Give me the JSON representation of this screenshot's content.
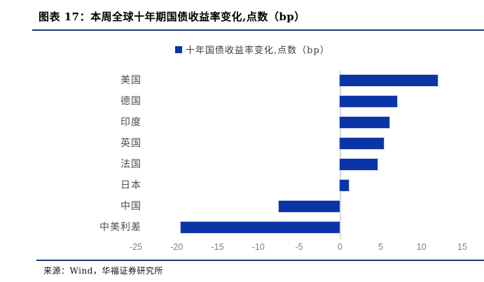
{
  "header": {
    "title": "图表 17：本周全球十年期国债收益率变化,点数（bp）"
  },
  "footer": {
    "source": "来源：Wind，华福证券研究所"
  },
  "legend": {
    "label": "十年国债收益率变化,点数（bp）"
  },
  "colors": {
    "bar_blue": "#0b34a6",
    "divider_navy": "#1b3a6b",
    "axis_label_gray": "#7f7f7f",
    "category_gray": "#4d4d4d",
    "zero_line_gray": "#d9d9d9"
  },
  "chart_data": {
    "type": "bar",
    "orientation": "horizontal",
    "title": "本周全球十年期国债收益率变化,点数（bp）",
    "categories": [
      "美国",
      "德国",
      "印度",
      "英国",
      "法国",
      "日本",
      "中国",
      "中美利差"
    ],
    "series": [
      {
        "name": "十年国债收益率变化,点数（bp）",
        "values": [
          12.0,
          7.0,
          6.1,
          5.4,
          4.6,
          1.1,
          -7.5,
          -19.5
        ]
      }
    ],
    "xlabel": "",
    "ylabel": "",
    "xlim": [
      -25,
      15
    ],
    "xticks": [
      -25,
      -20,
      -15,
      -10,
      -5,
      0,
      5,
      10,
      15
    ],
    "grid": false,
    "legend_position": "top-center",
    "bar_color": "#0b34a6"
  }
}
